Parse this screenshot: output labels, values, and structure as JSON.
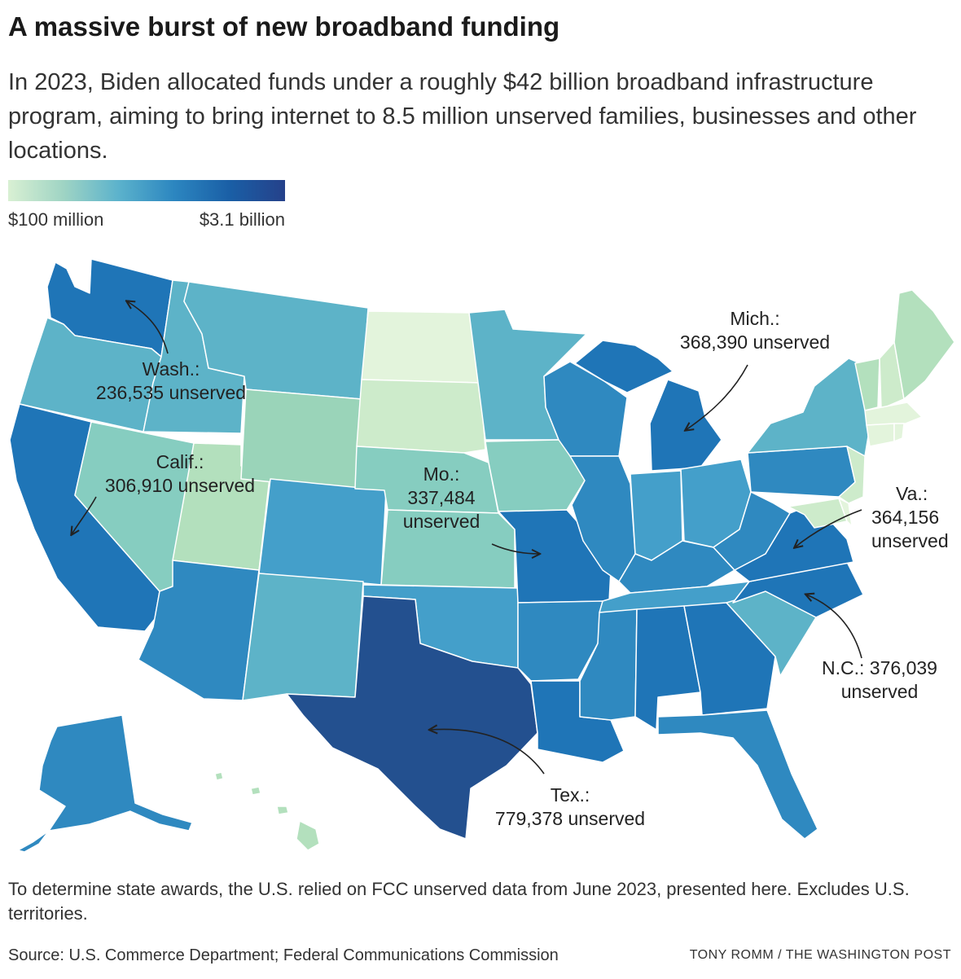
{
  "header": {
    "title": "A massive burst of new broadband funding",
    "subtitle": "In 2023, Biden allocated funds under a roughly $42 billion broadband infrastructure program, aiming to bring internet to 8.5 million unserved families, businesses and other locations."
  },
  "legend": {
    "min_label": "$100 million",
    "max_label": "$3.1 billion"
  },
  "colors": {
    "c1": "#e3f4dc",
    "c2": "#cdebcb",
    "c3": "#b3e0bd",
    "c4": "#9ad4b9",
    "c5": "#86cdc0",
    "c6": "#5db3c8",
    "c7": "#449fca",
    "c8": "#2f89c0",
    "c9": "#1f75b7",
    "c10": "#1a66ad",
    "c11": "#23508f"
  },
  "callouts": {
    "wash": {
      "state": "Wash.:",
      "value": "236,535 unserved"
    },
    "calif": {
      "state": "Calif.:",
      "value": "306,910 unserved"
    },
    "mo": {
      "state": "Mo.:",
      "value": "337,484",
      "unit": "unserved"
    },
    "mich": {
      "state": "Mich.:",
      "value": "368,390 unserved"
    },
    "va": {
      "state": "Va.:",
      "value": "364,156",
      "unit": "unserved"
    },
    "nc": {
      "state": "N.C.: 376,039",
      "unit": "unserved"
    },
    "tex": {
      "state": "Tex.:",
      "value": "779,378 unserved"
    }
  },
  "footer": {
    "note": "To determine state awards, the U.S. relied on FCC unserved data from June 2023, presented here. Excludes U.S. territories.",
    "source": "Source: U.S. Commerce Department; Federal Communications Commission",
    "credit": "TONY ROMM / THE WASHINGTON POST"
  }
}
